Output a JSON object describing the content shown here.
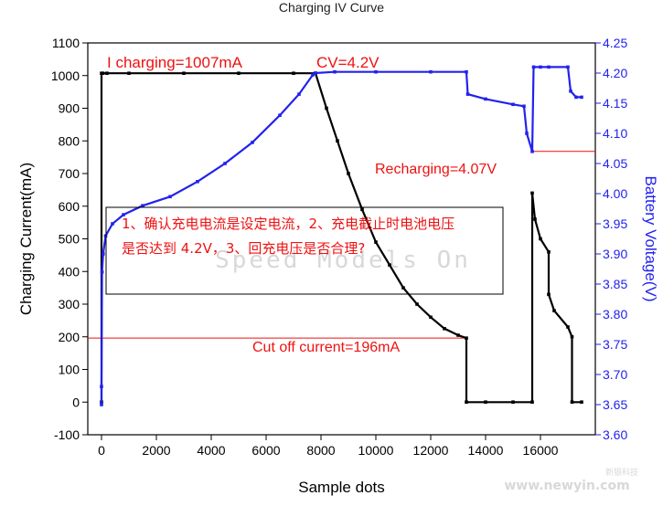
{
  "title": "Charging IV Curve",
  "watermark": "Speed Models On",
  "site": "www.newyin.com",
  "site_cn": "新银科技",
  "colors": {
    "current": "#000000",
    "voltage": "#2222ee",
    "annotation": "#ee1111",
    "right_axis": "#2222ee"
  },
  "chart_data": {
    "type": "line",
    "xlabel": "Sample dots",
    "ylabel": "Charging Current(mA)",
    "y2label": "Battery Voltage(V)",
    "xlim": [
      -500,
      18000
    ],
    "ylim": [
      -100,
      1100
    ],
    "y2lim": [
      3.6,
      4.25
    ],
    "xticks": [
      "0",
      "2000",
      "4000",
      "6000",
      "8000",
      "10000",
      "12000",
      "14000",
      "16000"
    ],
    "yticks": [
      "-100",
      "0",
      "100",
      "200",
      "300",
      "400",
      "500",
      "600",
      "700",
      "800",
      "900",
      "1000",
      "1100"
    ],
    "y2ticks": [
      "3.60",
      "3.65",
      "3.70",
      "3.75",
      "3.80",
      "3.85",
      "3.90",
      "3.95",
      "4.00",
      "4.05",
      "4.10",
      "4.15",
      "4.20",
      "4.25"
    ],
    "series": [
      {
        "axis": "left",
        "x": [
          0,
          0,
          50,
          200,
          1000,
          3000,
          5000,
          7000,
          7800,
          8200,
          8600,
          9000,
          9500,
          10000,
          10500,
          11000,
          11500,
          12000,
          12500,
          13000,
          13300,
          13300,
          14000,
          15000,
          15700,
          15700,
          15800,
          16000,
          16300,
          16300,
          16500,
          17000,
          17150,
          17150,
          17500
        ],
        "values": [
          0,
          1007,
          1007,
          1007,
          1007,
          1007,
          1007,
          1007,
          1007,
          900,
          800,
          700,
          590,
          490,
          420,
          350,
          300,
          260,
          225,
          205,
          196,
          0,
          0,
          0,
          0,
          640,
          560,
          500,
          460,
          330,
          280,
          230,
          200,
          0,
          0
        ]
      },
      {
        "axis": "right",
        "x": [
          0,
          0,
          20,
          60,
          150,
          400,
          800,
          1500,
          2500,
          3500,
          4500,
          5500,
          6500,
          7200,
          7700,
          7800,
          8500,
          10000,
          12000,
          13300,
          13350,
          14000,
          15000,
          15400,
          15500,
          15700,
          15750,
          16000,
          16300,
          17000,
          17100,
          17300,
          17500
        ],
        "values": [
          3.65,
          3.68,
          3.87,
          3.9,
          3.93,
          3.95,
          3.965,
          3.98,
          3.995,
          4.02,
          4.05,
          4.085,
          4.13,
          4.165,
          4.197,
          4.2,
          4.202,
          4.202,
          4.202,
          4.202,
          4.165,
          4.157,
          4.148,
          4.145,
          4.1,
          4.07,
          4.21,
          4.21,
          4.21,
          4.21,
          4.17,
          4.16,
          4.16
        ]
      }
    ],
    "annotations": {
      "i_charging": "I charging=1007mA",
      "cv": "CV=4.2V",
      "recharging": "Recharging=4.07V",
      "cutoff": "Cut off current=196mA",
      "note_line1": "1、确认充电电流是设定电流，2、充电截止时电池电压",
      "note_line2": "是否达到 4.2V，3、回充电压是否合理?"
    },
    "reference_lines": {
      "cutoff_current": 196,
      "recharge_voltage": 4.07
    },
    "grid": false
  }
}
